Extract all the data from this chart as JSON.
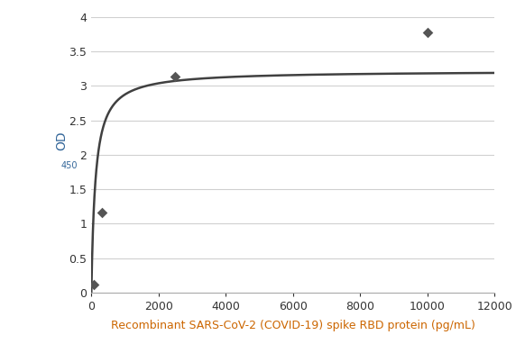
{
  "scatter_x": [
    78,
    313,
    2500,
    10000
  ],
  "scatter_y": [
    0.12,
    1.16,
    3.13,
    3.77
  ],
  "curve_params": {
    "Bmax": 3.22,
    "Kd": 120
  },
  "xlim": [
    0,
    12000
  ],
  "ylim": [
    0,
    4
  ],
  "xticks": [
    0,
    2000,
    4000,
    6000,
    8000,
    10000,
    12000
  ],
  "yticks": [
    0,
    0.5,
    1.0,
    1.5,
    2.0,
    2.5,
    3.0,
    3.5,
    4.0
  ],
  "xlabel": "Recombinant SARS-CoV-2 (COVID-19) spike RBD protein (pg/mL)",
  "ylabel_main": "OD",
  "ylabel_sub": "450",
  "scatter_color": "#555555",
  "curve_color": "#404040",
  "background_color": "#ffffff",
  "grid_color": "#d0d0d0",
  "xlabel_color": "#cc6600",
  "ylabel_color": "#336699"
}
